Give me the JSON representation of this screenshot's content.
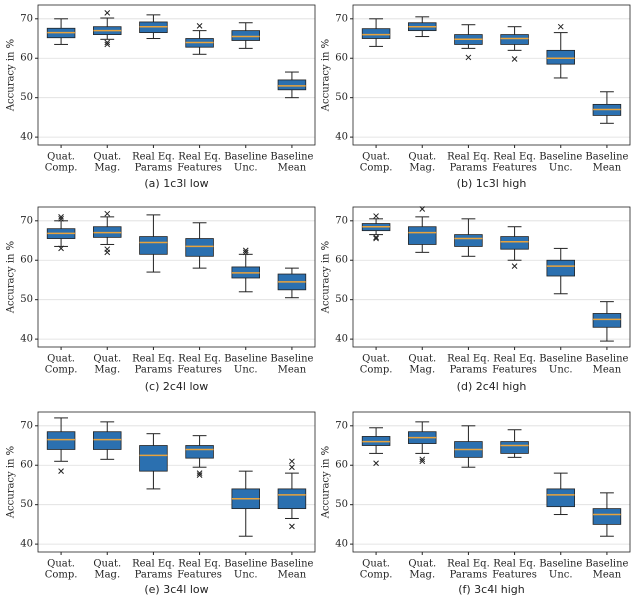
{
  "chart_data": [
    {
      "type": "box",
      "title": "(a) 1c3l low",
      "ylabel": "Accuracy in %",
      "color": "#2b70b0",
      "median_color": "#e8a33d",
      "grid": true,
      "categories": [
        [
          "Quat.",
          "Comp."
        ],
        [
          "Quat.",
          "Mag."
        ],
        [
          "Real Eq.",
          "Params"
        ],
        [
          "Real Eq.",
          "Features"
        ],
        [
          "Baseline",
          "Unc."
        ],
        [
          "Baseline",
          "Mean"
        ]
      ],
      "boxes": [
        {
          "whislo": 63.5,
          "q1": 65.2,
          "med": 66.5,
          "q3": 67.6,
          "whishi": 70,
          "fliers": []
        },
        {
          "whislo": 64.8,
          "q1": 66,
          "med": 67,
          "q3": 68,
          "whishi": 70.2,
          "fliers": [
            71.5,
            64,
            63.5
          ]
        },
        {
          "whislo": 65,
          "q1": 66.5,
          "med": 68,
          "q3": 69.2,
          "whishi": 71,
          "fliers": []
        },
        {
          "whislo": 61,
          "q1": 62.8,
          "med": 64,
          "q3": 65,
          "whishi": 67,
          "fliers": [
            68.2
          ]
        },
        {
          "whislo": 62.5,
          "q1": 64.5,
          "med": 65.5,
          "q3": 67,
          "whishi": 69,
          "fliers": []
        },
        {
          "whislo": 50,
          "q1": 52,
          "med": 53,
          "q3": 54.5,
          "whishi": 56.5,
          "fliers": []
        }
      ],
      "ylim": [
        38,
        73.5
      ],
      "yticks": [
        40,
        50,
        60,
        70
      ]
    },
    {
      "type": "box",
      "title": "(b) 1c3l high",
      "ylabel": "Accuracy in %",
      "color": "#2b70b0",
      "median_color": "#e8a33d",
      "grid": true,
      "categories": [
        [
          "Quat.",
          "Comp."
        ],
        [
          "Quat.",
          "Mag."
        ],
        [
          "Real Eq.",
          "Params"
        ],
        [
          "Real Eq.",
          "Features"
        ],
        [
          "Baseline",
          "Unc."
        ],
        [
          "Baseline",
          "Mean"
        ]
      ],
      "boxes": [
        {
          "whislo": 63,
          "q1": 65,
          "med": 66,
          "q3": 67.5,
          "whishi": 70,
          "fliers": []
        },
        {
          "whislo": 65.5,
          "q1": 67,
          "med": 68,
          "q3": 69,
          "whishi": 70.5,
          "fliers": []
        },
        {
          "whislo": 62.5,
          "q1": 63.5,
          "med": 64.8,
          "q3": 66,
          "whishi": 68.5,
          "fliers": [
            60.2
          ]
        },
        {
          "whislo": 62,
          "q1": 63.5,
          "med": 65,
          "q3": 66,
          "whishi": 68,
          "fliers": [
            59.8
          ]
        },
        {
          "whislo": 55,
          "q1": 58.5,
          "med": 60,
          "q3": 62,
          "whishi": 66.5,
          "fliers": [
            68
          ]
        },
        {
          "whislo": 43.5,
          "q1": 45.5,
          "med": 47,
          "q3": 48.3,
          "whishi": 51.5,
          "fliers": []
        }
      ],
      "ylim": [
        38,
        73.5
      ],
      "yticks": [
        40,
        50,
        60,
        70
      ]
    },
    {
      "type": "box",
      "title": "(c) 2c4l low",
      "ylabel": "Accuracy in %",
      "color": "#2b70b0",
      "median_color": "#e8a33d",
      "grid": true,
      "categories": [
        [
          "Quat.",
          "Comp."
        ],
        [
          "Quat.",
          "Mag."
        ],
        [
          "Real Eq.",
          "Params"
        ],
        [
          "Real Eq.",
          "Features"
        ],
        [
          "Baseline",
          "Unc."
        ],
        [
          "Baseline",
          "Mean"
        ]
      ],
      "boxes": [
        {
          "whislo": 63.5,
          "q1": 65.5,
          "med": 66.8,
          "q3": 68,
          "whishi": 70,
          "fliers": [
            71,
            70.5,
            63
          ]
        },
        {
          "whislo": 64,
          "q1": 65.8,
          "med": 67,
          "q3": 68.5,
          "whishi": 71,
          "fliers": [
            71.8,
            62.8,
            62
          ]
        },
        {
          "whislo": 57,
          "q1": 61.5,
          "med": 64.5,
          "q3": 66,
          "whishi": 71.5,
          "fliers": []
        },
        {
          "whislo": 58,
          "q1": 61,
          "med": 63.5,
          "q3": 65.5,
          "whishi": 69.5,
          "fliers": []
        },
        {
          "whislo": 52,
          "q1": 55.5,
          "med": 56.8,
          "q3": 58.3,
          "whishi": 61.5,
          "fliers": [
            62.5,
            62
          ]
        },
        {
          "whislo": 50.5,
          "q1": 52.5,
          "med": 54.5,
          "q3": 56.5,
          "whishi": 58,
          "fliers": []
        }
      ],
      "ylim": [
        38,
        73.5
      ],
      "yticks": [
        40,
        50,
        60,
        70
      ]
    },
    {
      "type": "box",
      "title": "(d) 2c4l high",
      "ylabel": "Accuracy in %",
      "color": "#2b70b0",
      "median_color": "#e8a33d",
      "grid": true,
      "categories": [
        [
          "Quat.",
          "Comp."
        ],
        [
          "Quat.",
          "Mag."
        ],
        [
          "Real Eq.",
          "Params"
        ],
        [
          "Real Eq.",
          "Features"
        ],
        [
          "Baseline",
          "Unc."
        ],
        [
          "Baseline",
          "Mean"
        ]
      ],
      "boxes": [
        {
          "whislo": 66.5,
          "q1": 67.5,
          "med": 68.5,
          "q3": 69.3,
          "whishi": 70.5,
          "fliers": [
            71.2,
            65.8,
            65.5
          ]
        },
        {
          "whislo": 62,
          "q1": 64,
          "med": 67,
          "q3": 68.5,
          "whishi": 71,
          "fliers": [
            73
          ]
        },
        {
          "whislo": 61,
          "q1": 63.5,
          "med": 65.5,
          "q3": 66.5,
          "whishi": 70.5,
          "fliers": []
        },
        {
          "whislo": 60,
          "q1": 62.8,
          "med": 64.7,
          "q3": 66,
          "whishi": 68.5,
          "fliers": [
            58.5
          ]
        },
        {
          "whislo": 51.5,
          "q1": 56,
          "med": 58.5,
          "q3": 60,
          "whishi": 63,
          "fliers": []
        },
        {
          "whislo": 39.5,
          "q1": 43,
          "med": 45,
          "q3": 46.5,
          "whishi": 49.5,
          "fliers": []
        }
      ],
      "ylim": [
        38,
        73.5
      ],
      "yticks": [
        40,
        50,
        60,
        70
      ]
    },
    {
      "type": "box",
      "title": "(e) 3c4l low",
      "ylabel": "Accuracy in %",
      "color": "#2b70b0",
      "median_color": "#e8a33d",
      "grid": true,
      "categories": [
        [
          "Quat.",
          "Comp."
        ],
        [
          "Quat.",
          "Mag."
        ],
        [
          "Real Eq.",
          "Params"
        ],
        [
          "Real Eq.",
          "Features"
        ],
        [
          "Baseline",
          "Unc."
        ],
        [
          "Baseline",
          "Mean"
        ]
      ],
      "boxes": [
        {
          "whislo": 61,
          "q1": 64,
          "med": 66.5,
          "q3": 68.5,
          "whishi": 72,
          "fliers": [
            58.5
          ]
        },
        {
          "whislo": 61.5,
          "q1": 64,
          "med": 66.5,
          "q3": 68.5,
          "whishi": 71,
          "fliers": []
        },
        {
          "whislo": 54,
          "q1": 58.5,
          "med": 62.5,
          "q3": 65,
          "whishi": 68,
          "fliers": []
        },
        {
          "whislo": 59.5,
          "q1": 61.8,
          "med": 64,
          "q3": 65,
          "whishi": 67.5,
          "fliers": [
            58,
            57.5
          ]
        },
        {
          "whislo": 42,
          "q1": 49,
          "med": 51.5,
          "q3": 54,
          "whishi": 58.5,
          "fliers": []
        },
        {
          "whislo": 46.5,
          "q1": 49,
          "med": 52.5,
          "q3": 54,
          "whishi": 58,
          "fliers": [
            61,
            59.5,
            44.5
          ]
        }
      ],
      "ylim": [
        38,
        73.5
      ],
      "yticks": [
        40,
        50,
        60,
        70
      ]
    },
    {
      "type": "box",
      "title": "(f) 3c4l high",
      "ylabel": "Accuracy in %",
      "color": "#2b70b0",
      "median_color": "#e8a33d",
      "grid": true,
      "categories": [
        [
          "Quat.",
          "Comp."
        ],
        [
          "Quat.",
          "Mag."
        ],
        [
          "Real Eq.",
          "Params"
        ],
        [
          "Real Eq.",
          "Features"
        ],
        [
          "Baseline",
          "Unc."
        ],
        [
          "Baseline",
          "Mean"
        ]
      ],
      "boxes": [
        {
          "whislo": 63,
          "q1": 65,
          "med": 66,
          "q3": 67.3,
          "whishi": 69.5,
          "fliers": [
            60.5
          ]
        },
        {
          "whislo": 63,
          "q1": 65.5,
          "med": 67,
          "q3": 68.5,
          "whishi": 71,
          "fliers": [
            61.5,
            61
          ]
        },
        {
          "whislo": 59.5,
          "q1": 62,
          "med": 64,
          "q3": 66,
          "whishi": 70,
          "fliers": []
        },
        {
          "whislo": 62,
          "q1": 63,
          "med": 65,
          "q3": 66,
          "whishi": 69,
          "fliers": []
        },
        {
          "whislo": 47.5,
          "q1": 49.5,
          "med": 52.5,
          "q3": 54,
          "whishi": 58,
          "fliers": []
        },
        {
          "whislo": 42,
          "q1": 45,
          "med": 47.5,
          "q3": 49,
          "whishi": 53,
          "fliers": []
        }
      ],
      "ylim": [
        38,
        73.5
      ],
      "yticks": [
        40,
        50,
        60,
        70
      ]
    }
  ]
}
